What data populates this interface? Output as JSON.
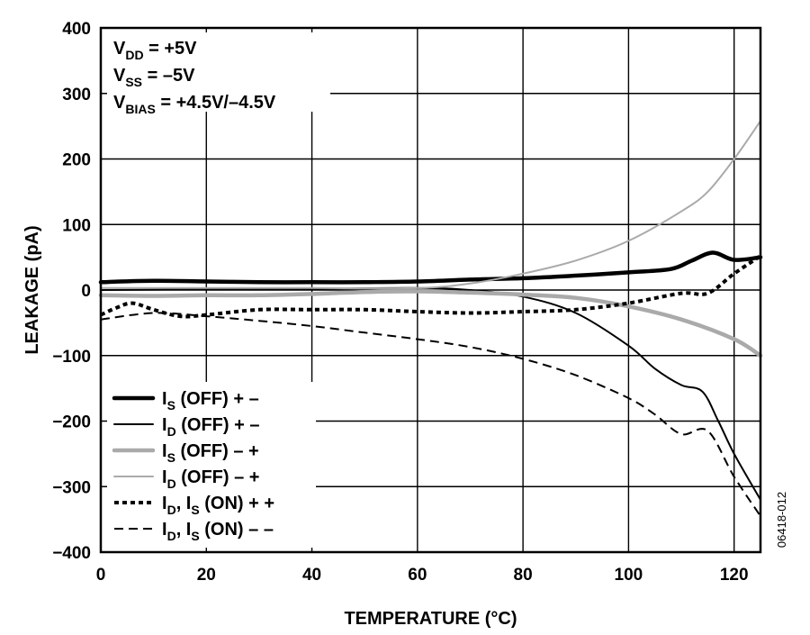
{
  "chart_data": {
    "type": "line",
    "xlabel": "TEMPERATURE (°C)",
    "ylabel": "LEAKAGE (pA)",
    "xlim": [
      0,
      125
    ],
    "ylim": [
      -400,
      400
    ],
    "xticks": [
      0,
      20,
      40,
      60,
      80,
      100,
      120
    ],
    "yticks": [
      400,
      300,
      200,
      100,
      0,
      -100,
      -200,
      -300,
      -400
    ],
    "grid": true,
    "legend_position": "bottom-left",
    "annotation": [
      {
        "main": "V",
        "sub": "DD",
        "rest": " = +5V"
      },
      {
        "main": "V",
        "sub": "SS",
        "rest": " = –5V"
      },
      {
        "main": "V",
        "sub": "BIAS",
        "rest": " = +4.5V/–4.5V"
      }
    ],
    "figure_id": "06418-012",
    "series": [
      {
        "legend": [
          {
            "t": "I"
          },
          {
            "t": "S",
            "sub": true
          },
          {
            "t": " (OFF) + –"
          }
        ],
        "color": "#000000",
        "style": "thick",
        "x": [
          0,
          10,
          20,
          30,
          40,
          50,
          60,
          70,
          80,
          90,
          100,
          108,
          112,
          116,
          120,
          125
        ],
        "y": [
          12,
          14,
          13,
          12,
          12,
          12,
          13,
          16,
          18,
          22,
          27,
          32,
          45,
          57,
          46,
          50
        ]
      },
      {
        "legend": [
          {
            "t": "I"
          },
          {
            "t": "D",
            "sub": true
          },
          {
            "t": " (OFF) + –"
          }
        ],
        "color": "#000000",
        "style": "thin",
        "x": [
          0,
          20,
          40,
          60,
          70,
          80,
          90,
          100,
          105,
          110,
          114,
          117,
          120,
          125
        ],
        "y": [
          0,
          1,
          2,
          3,
          0,
          -10,
          -35,
          -85,
          -120,
          -145,
          -155,
          -200,
          -250,
          -320
        ]
      },
      {
        "legend": [
          {
            "t": "I"
          },
          {
            "t": "S",
            "sub": true
          },
          {
            "t": " (OFF) – +"
          }
        ],
        "color": "#aaaaaa",
        "style": "thick",
        "x": [
          0,
          10,
          20,
          30,
          40,
          50,
          60,
          70,
          80,
          90,
          100,
          110,
          120,
          125
        ],
        "y": [
          -8,
          -9,
          -8,
          -8,
          -6,
          -3,
          -2,
          -4,
          -7,
          -12,
          -25,
          -45,
          -75,
          -100
        ]
      },
      {
        "legend": [
          {
            "t": "I"
          },
          {
            "t": "D",
            "sub": true
          },
          {
            "t": " (OFF) – +"
          }
        ],
        "color": "#aaaaaa",
        "style": "thin",
        "x": [
          0,
          20,
          40,
          60,
          70,
          80,
          90,
          100,
          110,
          115,
          120,
          125
        ],
        "y": [
          3,
          3,
          3,
          3,
          10,
          25,
          45,
          75,
          120,
          150,
          200,
          258
        ]
      },
      {
        "legend": [
          {
            "t": "I"
          },
          {
            "t": "D",
            "sub": true
          },
          {
            "t": ", I"
          },
          {
            "t": "S",
            "sub": true
          },
          {
            "t": " (ON) + +"
          }
        ],
        "color": "#000000",
        "style": "dotted",
        "x": [
          0,
          3,
          6,
          10,
          15,
          20,
          30,
          40,
          50,
          60,
          70,
          80,
          90,
          100,
          110,
          115,
          120,
          125
        ],
        "y": [
          -38,
          -27,
          -20,
          -30,
          -40,
          -38,
          -30,
          -30,
          -30,
          -33,
          -35,
          -33,
          -30,
          -20,
          -5,
          -5,
          25,
          52
        ]
      },
      {
        "legend": [
          {
            "t": "I"
          },
          {
            "t": "D",
            "sub": true
          },
          {
            "t": ", I"
          },
          {
            "t": "S",
            "sub": true
          },
          {
            "t": " (ON) – –"
          }
        ],
        "color": "#000000",
        "style": "dashed",
        "x": [
          0,
          10,
          20,
          30,
          40,
          50,
          60,
          70,
          80,
          90,
          100,
          105,
          110,
          115,
          120,
          125
        ],
        "y": [
          -45,
          -35,
          -40,
          -47,
          -55,
          -65,
          -75,
          -87,
          -105,
          -130,
          -165,
          -190,
          -220,
          -215,
          -285,
          -345
        ]
      }
    ]
  }
}
